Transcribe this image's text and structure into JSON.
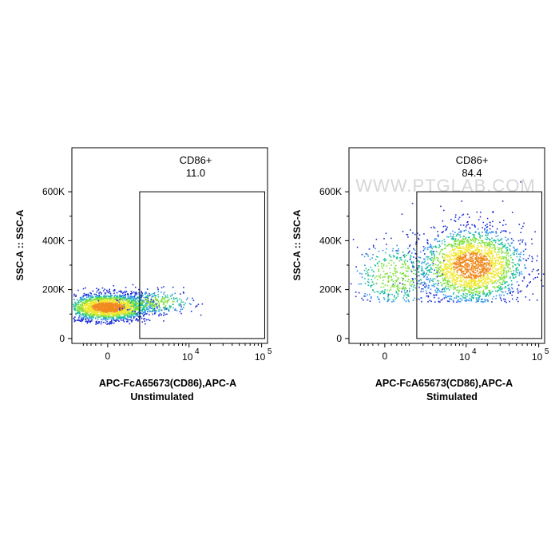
{
  "chart_data": [
    {
      "type": "scatter",
      "subtype": "flow-cytometry-density-plot",
      "xlabel": "APC-FcA65673(CD86),APC-A",
      "ylabel": "SSC-A :: SSC-A",
      "subtitle": "Unstimulated",
      "x_scale": "biexponential",
      "y_ticks": [
        "0",
        "200K",
        "400K",
        "600K"
      ],
      "y_tick_values": [
        0,
        200000,
        400000,
        600000
      ],
      "ylim": [
        -20000,
        780000
      ],
      "x_ticks": [
        {
          "base": "0",
          "exp": "",
          "value": 0
        },
        {
          "base": "10",
          "exp": "4",
          "value": 10000
        },
        {
          "base": "10",
          "exp": "5",
          "value": 100000
        }
      ],
      "gate": {
        "name": "CD86+",
        "value": "11.0",
        "x_min": 1500,
        "x_max": 110000,
        "y_min": 0,
        "y_max": 600000
      },
      "populations": [
        {
          "x_center": 0,
          "x_spread": 900,
          "y_center": 130000,
          "y_spread": 28000,
          "weight": 0.89
        },
        {
          "x_center": 3000,
          "x_spread": 2200,
          "y_center": 150000,
          "y_spread": 25000,
          "weight": 0.11
        }
      ],
      "watermark": ""
    },
    {
      "type": "scatter",
      "subtype": "flow-cytometry-density-plot",
      "xlabel": "APC-FcA65673(CD86),APC-A",
      "ylabel": "SSC-A :: SSC-A",
      "subtitle": "Stimulated",
      "x_scale": "biexponential",
      "y_ticks": [
        "0",
        "200K",
        "400K",
        "600K"
      ],
      "y_tick_values": [
        0,
        200000,
        400000,
        600000
      ],
      "ylim": [
        -20000,
        780000
      ],
      "x_ticks": [
        {
          "base": "0",
          "exp": "",
          "value": 0
        },
        {
          "base": "10",
          "exp": "4",
          "value": 10000
        },
        {
          "base": "10",
          "exp": "5",
          "value": 100000
        }
      ],
      "gate": {
        "name": "CD86+",
        "value": "84.4",
        "x_min": 1500,
        "x_max": 110000,
        "y_min": 0,
        "y_max": 600000
      },
      "populations": [
        {
          "x_center": 12000,
          "x_spread": 9000,
          "y_center": 300000,
          "y_spread": 80000,
          "weight": 0.84
        },
        {
          "x_center": 300,
          "x_spread": 900,
          "y_center": 260000,
          "y_spread": 70000,
          "weight": 0.16
        }
      ],
      "watermark": "WWW.PTGLAB.COM"
    }
  ],
  "colors": {
    "density": [
      "#1a2bd6",
      "#2f8ff0",
      "#1fbf9f",
      "#7ee03a",
      "#f0e830",
      "#f08a20",
      "#e03020"
    ],
    "axis": "#000000",
    "gate": "#000000",
    "watermark": "#c8c8c8"
  }
}
